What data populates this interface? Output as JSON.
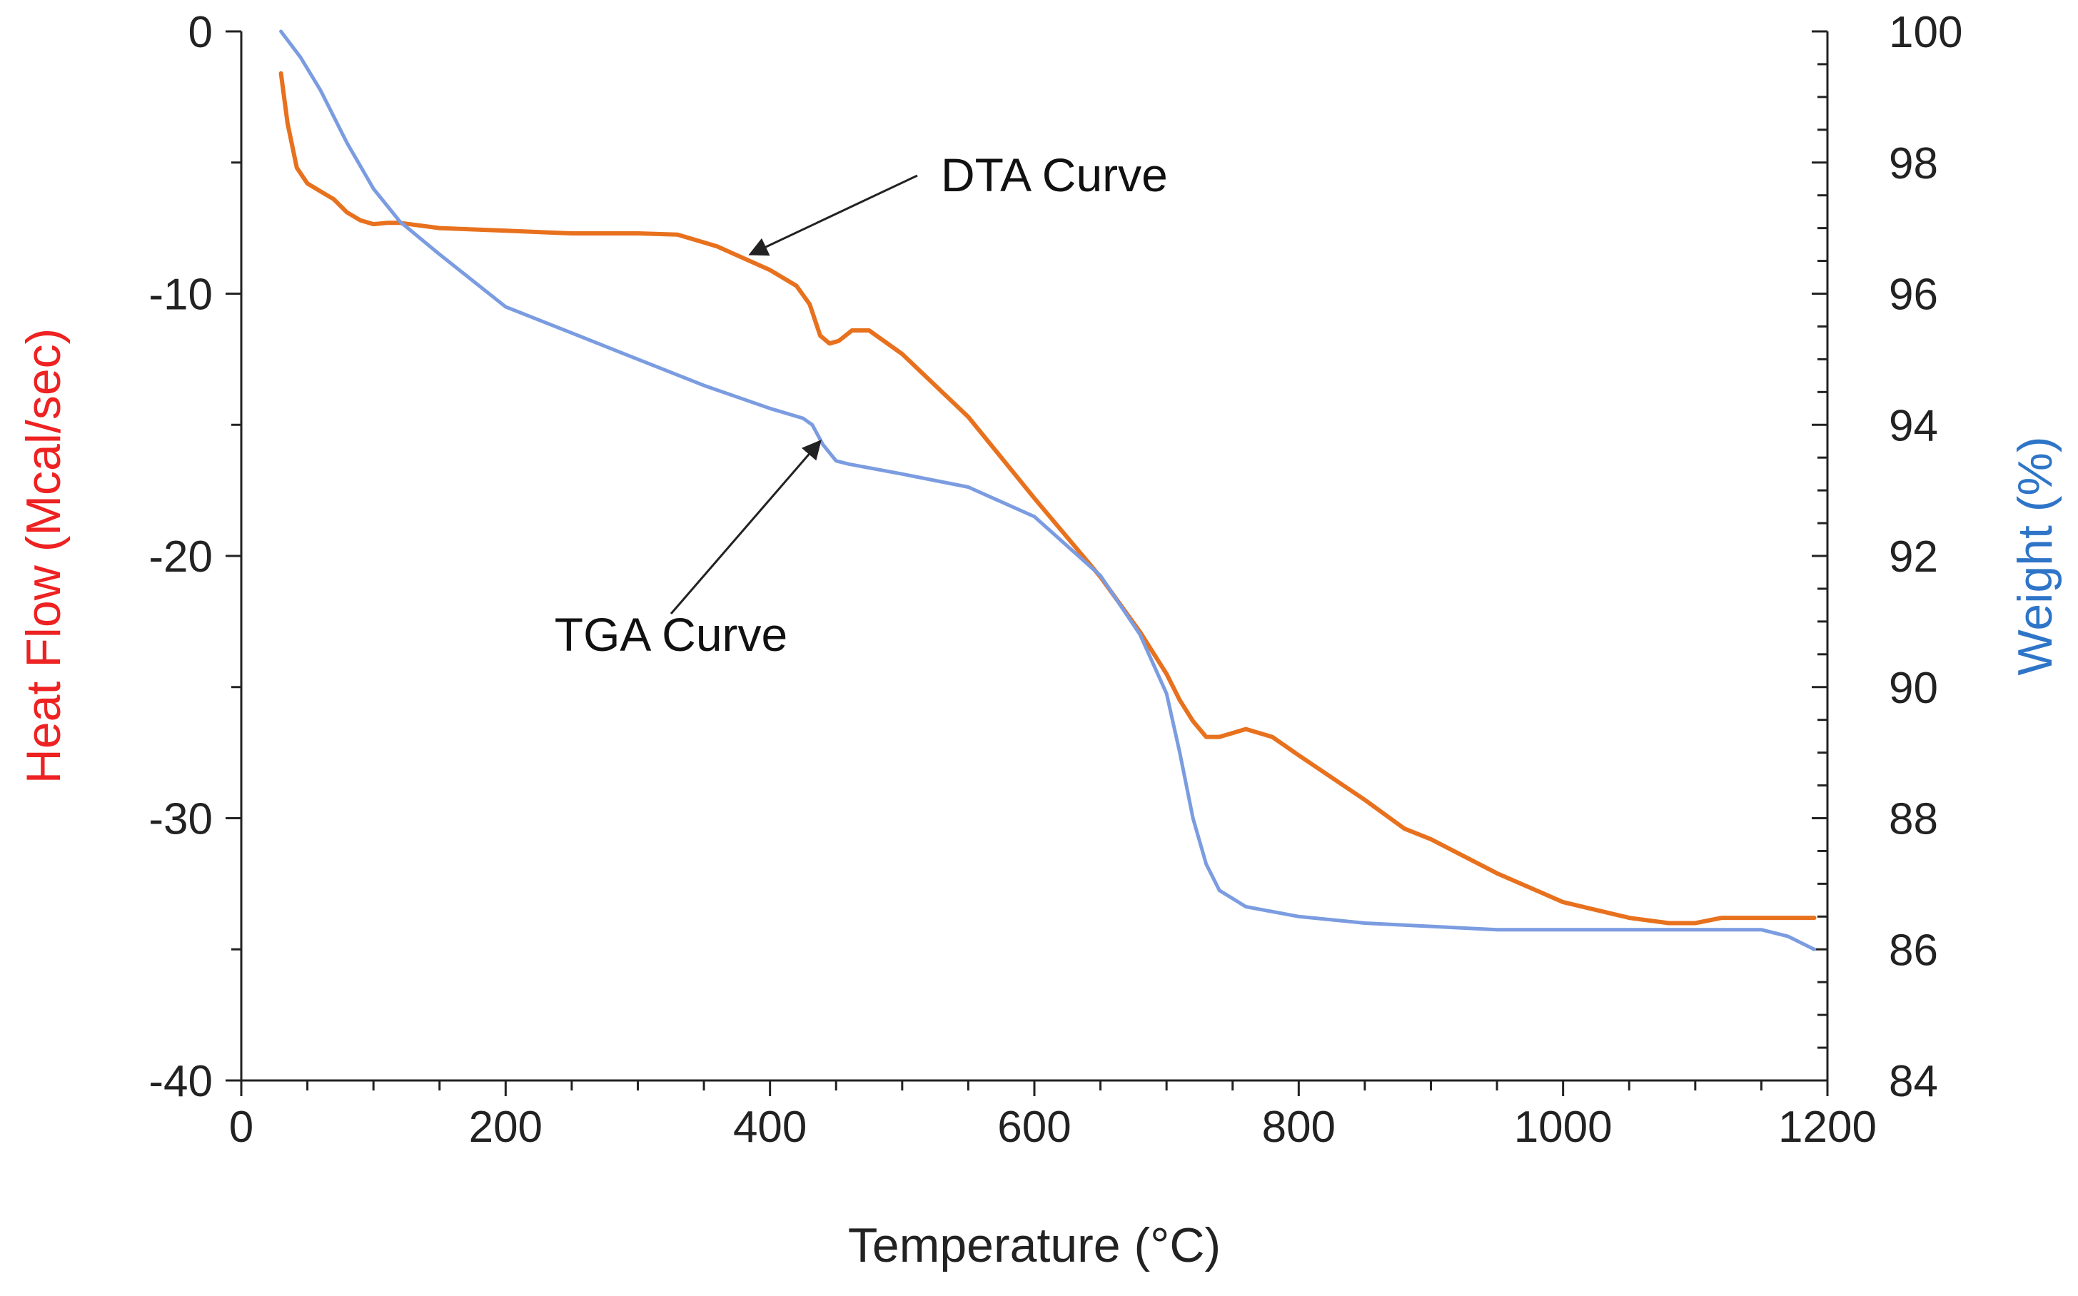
{
  "colors": {
    "dta": "#E8711E",
    "tga": "#7B9CE0",
    "left_axis_title": "#EE2222",
    "right_axis_title": "#2E75C8",
    "axis": "#222222",
    "annotation": "#222222"
  },
  "chart_data": {
    "type": "line",
    "title": "",
    "xlabel": "Temperature (°C)",
    "ylabel_left": "Heat Flow (Mcal/sec)",
    "ylabel_right": "Weight (%)",
    "xlim": [
      0,
      1200
    ],
    "ylim_left": [
      -40,
      0
    ],
    "ylim_right": [
      84,
      100
    ],
    "grid": false,
    "x_ticks": [
      "0",
      "200",
      "400",
      "600",
      "800",
      "1000",
      "1200"
    ],
    "y_left_ticks": [
      "0",
      "-10",
      "-20",
      "-30",
      "-40"
    ],
    "y_right_ticks": [
      "100",
      "98",
      "96",
      "94",
      "92",
      "90",
      "88",
      "86",
      "84"
    ],
    "series": [
      {
        "name": "DTA Curve",
        "axis": "left",
        "points": [
          [
            30,
            -1.6
          ],
          [
            35,
            -3.5
          ],
          [
            42,
            -5.2
          ],
          [
            50,
            -5.8
          ],
          [
            60,
            -6.1
          ],
          [
            70,
            -6.4
          ],
          [
            80,
            -6.9
          ],
          [
            90,
            -7.2
          ],
          [
            100,
            -7.35
          ],
          [
            110,
            -7.3
          ],
          [
            120,
            -7.3
          ],
          [
            150,
            -7.5
          ],
          [
            200,
            -7.6
          ],
          [
            250,
            -7.7
          ],
          [
            300,
            -7.7
          ],
          [
            330,
            -7.75
          ],
          [
            360,
            -8.2
          ],
          [
            400,
            -9.1
          ],
          [
            420,
            -9.7
          ],
          [
            430,
            -10.4
          ],
          [
            438,
            -11.6
          ],
          [
            445,
            -11.9
          ],
          [
            452,
            -11.8
          ],
          [
            462,
            -11.4
          ],
          [
            475,
            -11.4
          ],
          [
            500,
            -12.3
          ],
          [
            550,
            -14.7
          ],
          [
            600,
            -17.8
          ],
          [
            650,
            -20.8
          ],
          [
            680,
            -22.9
          ],
          [
            700,
            -24.5
          ],
          [
            710,
            -25.5
          ],
          [
            720,
            -26.3
          ],
          [
            730,
            -26.9
          ],
          [
            740,
            -26.9
          ],
          [
            760,
            -26.6
          ],
          [
            780,
            -26.9
          ],
          [
            800,
            -27.6
          ],
          [
            850,
            -29.3
          ],
          [
            880,
            -30.4
          ],
          [
            900,
            -30.8
          ],
          [
            950,
            -32.1
          ],
          [
            1000,
            -33.2
          ],
          [
            1050,
            -33.8
          ],
          [
            1080,
            -34.0
          ],
          [
            1100,
            -34.0
          ],
          [
            1120,
            -33.8
          ],
          [
            1150,
            -33.8
          ],
          [
            1190,
            -33.8
          ]
        ]
      },
      {
        "name": "TGA Curve",
        "axis": "right",
        "points": [
          [
            30,
            100.0
          ],
          [
            45,
            99.6
          ],
          [
            60,
            99.1
          ],
          [
            80,
            98.3
          ],
          [
            100,
            97.6
          ],
          [
            120,
            97.1
          ],
          [
            150,
            96.6
          ],
          [
            200,
            95.8
          ],
          [
            250,
            95.4
          ],
          [
            300,
            95.0
          ],
          [
            350,
            94.6
          ],
          [
            400,
            94.25
          ],
          [
            425,
            94.1
          ],
          [
            432,
            94.0
          ],
          [
            440,
            93.7
          ],
          [
            450,
            93.45
          ],
          [
            460,
            93.4
          ],
          [
            500,
            93.25
          ],
          [
            550,
            93.05
          ],
          [
            600,
            92.6
          ],
          [
            650,
            91.7
          ],
          [
            680,
            90.8
          ],
          [
            700,
            89.9
          ],
          [
            710,
            89.0
          ],
          [
            720,
            88.0
          ],
          [
            730,
            87.3
          ],
          [
            740,
            86.9
          ],
          [
            760,
            86.65
          ],
          [
            800,
            86.5
          ],
          [
            850,
            86.4
          ],
          [
            900,
            86.35
          ],
          [
            950,
            86.3
          ],
          [
            1000,
            86.3
          ],
          [
            1050,
            86.3
          ],
          [
            1100,
            86.3
          ],
          [
            1150,
            86.3
          ],
          [
            1170,
            86.2
          ],
          [
            1190,
            86.0
          ]
        ]
      }
    ],
    "annotations": [
      {
        "text": "DTA Curve",
        "series": "DTA Curve",
        "arrow_to_x": 385,
        "arrow_to_y": -8.5
      },
      {
        "text": "TGA Curve",
        "series": "TGA Curve",
        "arrow_to_x": 438,
        "arrow_to_y": 93.75
      }
    ]
  }
}
